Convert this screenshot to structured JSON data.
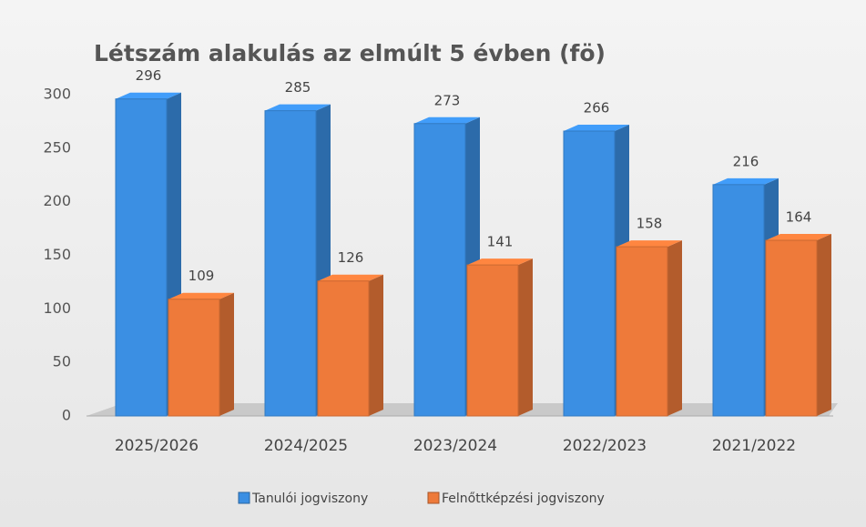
{
  "chart_data": {
    "type": "bar3d",
    "title": "Létszám alakulás az elmúlt 5 évben (fö)",
    "categories": [
      "2025/2026",
      "2024/2025",
      "2023/2024",
      "2022/2023",
      "2021/2022"
    ],
    "series": [
      {
        "name": "Tanulói jogviszony",
        "color": "#3b8fe3",
        "values": [
          296,
          285,
          273,
          266,
          216
        ]
      },
      {
        "name": "Felnőttképzési jogviszony",
        "color": "#ee7a3a",
        "values": [
          109,
          126,
          141,
          158,
          164
        ]
      }
    ],
    "ylim": [
      0,
      300
    ],
    "yticks": [
      0,
      50,
      100,
      150,
      200,
      250,
      300
    ],
    "legend": "bottom"
  }
}
